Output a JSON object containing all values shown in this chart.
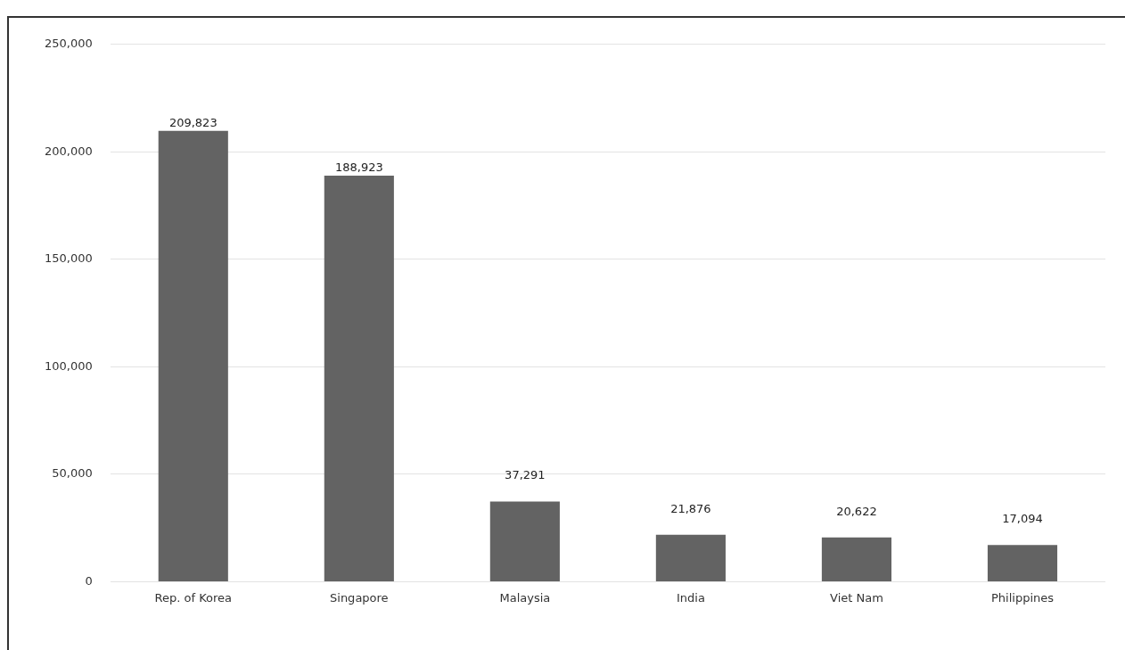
{
  "chart_data": {
    "type": "bar",
    "categories": [
      "Rep. of Korea",
      "Singapore",
      "Malaysia",
      "India",
      "Viet Nam",
      "Philippines"
    ],
    "values": [
      209823,
      188923,
      37291,
      21876,
      20622,
      17094
    ],
    "color": "#636363",
    "value_labels": [
      "209,823",
      "188,923",
      "37,291",
      "21,876",
      "20,622",
      "17,094"
    ],
    "ylim": [
      0,
      250000
    ],
    "yticks": [
      {
        "value": 0,
        "label": "0"
      },
      {
        "value": 50000,
        "label": "50,000"
      },
      {
        "value": 100000,
        "label": "100,000"
      },
      {
        "value": 150000,
        "label": "150,000"
      },
      {
        "value": 200000,
        "label": "200,000"
      },
      {
        "value": 250000,
        "label": "250,000"
      }
    ],
    "grid": "y"
  }
}
